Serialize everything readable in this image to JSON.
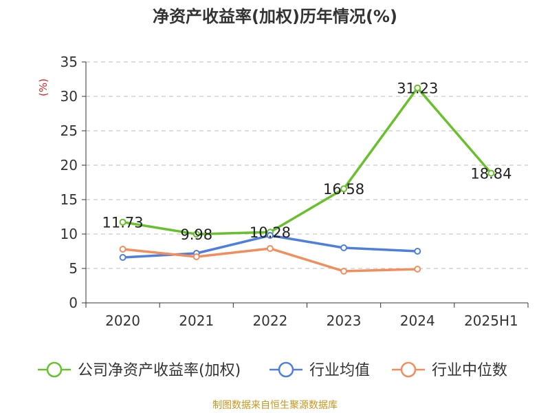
{
  "chart_data": {
    "type": "line",
    "title": "净资产收益率(加权)历年情况(%)",
    "ylabel": "(%)",
    "ylim": [
      0,
      35
    ],
    "yticks": [
      0,
      5,
      10,
      15,
      20,
      25,
      30,
      35
    ],
    "categories": [
      "2020",
      "2021",
      "2022",
      "2023",
      "2024",
      "2025H1"
    ],
    "grid": true,
    "legend_position": "bottom",
    "series": [
      {
        "name": "公司净资产收益率(加权)",
        "color": "#66c12b",
        "values": [
          11.73,
          9.98,
          10.28,
          16.58,
          31.23,
          18.84
        ],
        "labels": [
          "11.73",
          "9.98",
          "10.28",
          "16.58",
          "31.23",
          "18.84"
        ]
      },
      {
        "name": "行业均值",
        "color": "#4e7fde",
        "values": [
          6.6,
          7.2,
          9.8,
          8.0,
          7.5,
          null
        ]
      },
      {
        "name": "行业中位数",
        "color": "#f28d5c",
        "values": [
          7.8,
          6.7,
          7.9,
          4.6,
          4.9,
          null
        ]
      }
    ]
  },
  "source_note": "制图数据来自恒生聚源数据库"
}
